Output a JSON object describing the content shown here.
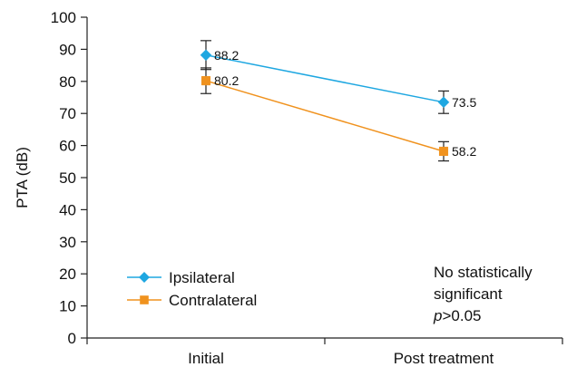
{
  "chart_data": {
    "type": "line",
    "categories": [
      "Initial",
      "Post treatment"
    ],
    "ylabel": "PTA (dB)",
    "xlabel": "",
    "ylim": [
      0,
      100
    ],
    "yticks": [
      0,
      10,
      20,
      30,
      40,
      50,
      60,
      70,
      80,
      90,
      100
    ],
    "grid": false,
    "legend_position": "bottom-left",
    "series": [
      {
        "name": "Ipsilateral",
        "values": [
          88.2,
          73.5
        ],
        "value_labels": [
          "88.2",
          "73.5"
        ],
        "error": [
          4.5,
          3.5
        ],
        "color": "#1ea7e1",
        "marker": "diamond"
      },
      {
        "name": "Contralateral",
        "values": [
          80.2,
          58.2
        ],
        "value_labels": [
          "80.2",
          "58.2"
        ],
        "error": [
          4.0,
          3.0
        ],
        "color": "#f0921e",
        "marker": "square"
      }
    ],
    "annotation": {
      "line1": "No statistically",
      "line2": "significant",
      "line3_italic": "p",
      "line3_rest": ">0.05"
    }
  }
}
